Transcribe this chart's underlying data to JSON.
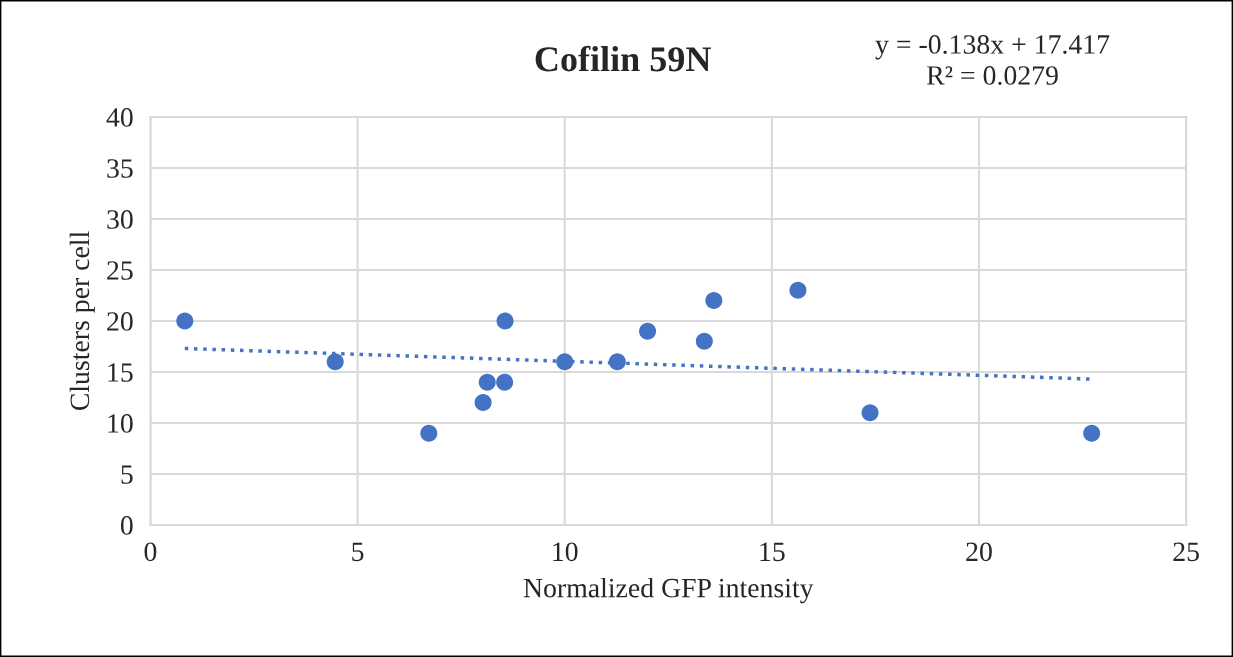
{
  "chart_data": {
    "type": "scatter",
    "title": "Cofilin 59N",
    "xlabel": "Normalized GFP intensity",
    "ylabel": "Clusters per cell",
    "annotations": [
      "y = -0.138x + 17.417\nR² = 0.0279"
    ],
    "series": [
      {
        "color": "#4472c4",
        "marker": "circle",
        "x": [
          0.83,
          4.46,
          6.72,
          8.03,
          8.13,
          8.55,
          8.56,
          10.0,
          11.27,
          12.0,
          13.37,
          13.6,
          15.63,
          17.37,
          22.72
        ],
        "values": [
          20,
          16,
          9,
          12,
          14,
          14,
          20,
          16,
          16,
          19,
          18,
          22,
          23,
          11,
          9
        ]
      },
      {
        "type": "line",
        "color": "#4472c4",
        "line_style": "dotted",
        "marker": "none",
        "x": [
          0.83,
          22.72
        ],
        "values": [
          17.3,
          14.3
        ]
      }
    ],
    "xlim": [
      0,
      25
    ],
    "xticks": [
      0,
      5,
      10,
      15,
      20,
      25
    ],
    "ylim": [
      0,
      40
    ],
    "yticks": [
      0,
      5,
      10,
      15,
      20,
      25,
      30,
      35,
      40
    ],
    "grid": true,
    "legend": false
  }
}
